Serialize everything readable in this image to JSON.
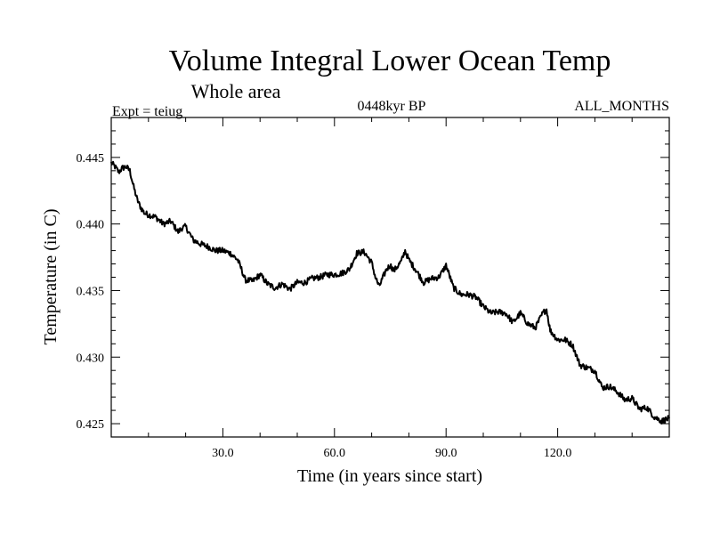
{
  "chart_data": {
    "type": "line",
    "title": "Volume Integral Lower Ocean Temp",
    "subtitle": "Whole area",
    "expt_label": "Expt = teiug",
    "period_label": "0448kyr BP",
    "months_label": "ALL_MONTHS",
    "xlabel": "Time (in years since start)",
    "ylabel": "Temperature (in C)",
    "xlim": [
      0,
      150
    ],
    "ylim": [
      0.424,
      0.448
    ],
    "x_ticks": [
      30,
      60,
      90,
      120
    ],
    "x_tick_labels": [
      "30.0",
      "60.0",
      "90.0",
      "120.0"
    ],
    "y_ticks": [
      0.425,
      0.43,
      0.435,
      0.44,
      0.445
    ],
    "y_tick_labels": [
      "0.425",
      "0.430",
      "0.435",
      "0.440",
      "0.445"
    ],
    "series": [
      {
        "name": "Lower Ocean Temp",
        "color": "#000000",
        "x": [
          0,
          1,
          2,
          3,
          4,
          5,
          6,
          7,
          8,
          9,
          10,
          12,
          14,
          16,
          18,
          19,
          20,
          22,
          24,
          26,
          28,
          30,
          32,
          34,
          35,
          36,
          38,
          40,
          42,
          44,
          46,
          48,
          50,
          52,
          54,
          56,
          58,
          60,
          62,
          64,
          66,
          68,
          70,
          71,
          72,
          74,
          75,
          76,
          78,
          79,
          80,
          82,
          84,
          86,
          88,
          89,
          90,
          92,
          94,
          96,
          98,
          100,
          102,
          104,
          106,
          108,
          110,
          112,
          114,
          116,
          117,
          118,
          120,
          122,
          124,
          126,
          128,
          130,
          132,
          134,
          136,
          138,
          140,
          142,
          144,
          146,
          148,
          150
        ],
        "y": [
          0.4446,
          0.4443,
          0.4439,
          0.4442,
          0.4443,
          0.444,
          0.4428,
          0.4418,
          0.4412,
          0.4408,
          0.4407,
          0.4405,
          0.44,
          0.4402,
          0.4394,
          0.4397,
          0.4398,
          0.4388,
          0.4385,
          0.4383,
          0.438,
          0.438,
          0.4378,
          0.4373,
          0.4366,
          0.4358,
          0.4357,
          0.4362,
          0.4355,
          0.4352,
          0.4355,
          0.4351,
          0.4356,
          0.4356,
          0.4359,
          0.436,
          0.4362,
          0.4362,
          0.4363,
          0.4366,
          0.4378,
          0.4379,
          0.4371,
          0.436,
          0.4353,
          0.4366,
          0.4369,
          0.4365,
          0.4372,
          0.438,
          0.4373,
          0.4365,
          0.4356,
          0.4359,
          0.436,
          0.4364,
          0.4369,
          0.4352,
          0.4347,
          0.4347,
          0.4345,
          0.4338,
          0.4333,
          0.4334,
          0.4333,
          0.4326,
          0.4333,
          0.4325,
          0.4322,
          0.4333,
          0.4336,
          0.432,
          0.4313,
          0.4313,
          0.4309,
          0.4294,
          0.4292,
          0.429,
          0.4277,
          0.4278,
          0.4274,
          0.4268,
          0.4269,
          0.4261,
          0.4262,
          0.4255,
          0.4252,
          0.4254
        ]
      }
    ]
  }
}
